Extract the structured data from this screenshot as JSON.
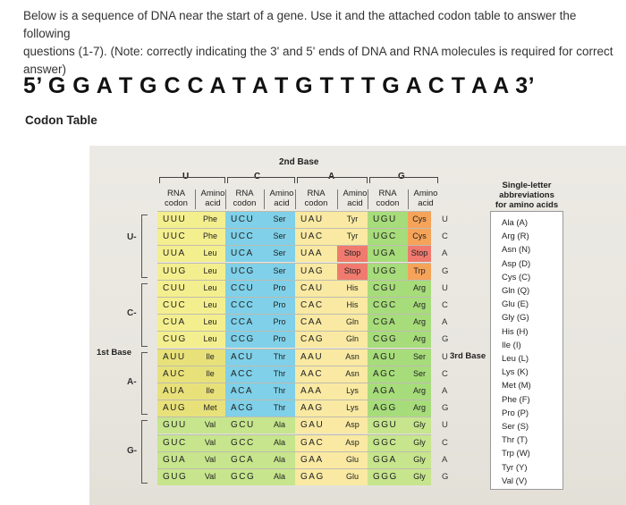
{
  "question": {
    "line1": "Below is a sequence of DNA near the start of a gene. Use it and the attached codon table to answer the following",
    "line2": "questions (1-7). (Note: correctly indicating the 3' and 5' ends of DNA and RNA molecules is required for correct answer)"
  },
  "sequence": "5’ G G A T G C C A T A T G T T T G A C T A A 3’",
  "codon_table_title": "Codon Table",
  "table": {
    "second_base_label": "2nd Base",
    "first_base_label": "1st Base",
    "third_base_label": "3rd Base",
    "bases": [
      "U",
      "C",
      "A",
      "G"
    ],
    "col_headers": [
      "RNA codon",
      "Amino acid",
      "RNA codon",
      "Amino acid",
      "RNA codon",
      "Amino acid",
      "RNA codon",
      "Amino acid"
    ],
    "third_bases": [
      "U",
      "C",
      "A",
      "G",
      "U",
      "C",
      "A",
      "G",
      "U",
      "C",
      "A",
      "G",
      "U",
      "C",
      "A",
      "G"
    ],
    "rows": [
      [
        "UUU",
        "Phe",
        "UCU",
        "Ser",
        "UAU",
        "Tyr",
        "UGU",
        "Cys"
      ],
      [
        "UUC",
        "Phe",
        "UCC",
        "Ser",
        "UAC",
        "Tyr",
        "UGC",
        "Cys"
      ],
      [
        "UUA",
        "Leu",
        "UCA",
        "Ser",
        "UAA",
        "Stop",
        "UGA",
        "Stop"
      ],
      [
        "UUG",
        "Leu",
        "UCG",
        "Ser",
        "UAG",
        "Stop",
        "UGG",
        "Trp"
      ],
      [
        "CUU",
        "Leu",
        "CCU",
        "Pro",
        "CAU",
        "His",
        "CGU",
        "Arg"
      ],
      [
        "CUC",
        "Leu",
        "CCC",
        "Pro",
        "CAC",
        "His",
        "CGC",
        "Arg"
      ],
      [
        "CUA",
        "Leu",
        "CCA",
        "Pro",
        "CAA",
        "Gln",
        "CGA",
        "Arg"
      ],
      [
        "CUG",
        "Leu",
        "CCG",
        "Pro",
        "CAG",
        "Gln",
        "CGG",
        "Arg"
      ],
      [
        "AUU",
        "Ile",
        "ACU",
        "Thr",
        "AAU",
        "Asn",
        "AGU",
        "Ser"
      ],
      [
        "AUC",
        "Ile",
        "ACC",
        "Thr",
        "AAC",
        "Asn",
        "AGC",
        "Ser"
      ],
      [
        "AUA",
        "Ile",
        "ACA",
        "Thr",
        "AAA",
        "Lys",
        "AGA",
        "Arg"
      ],
      [
        "AUG",
        "Met",
        "ACG",
        "Thr",
        "AAG",
        "Lys",
        "AGG",
        "Arg"
      ],
      [
        "GUU",
        "Val",
        "GCU",
        "Ala",
        "GAU",
        "Asp",
        "GGU",
        "Gly"
      ],
      [
        "GUC",
        "Val",
        "GCC",
        "Ala",
        "GAC",
        "Asp",
        "GGC",
        "Gly"
      ],
      [
        "GUA",
        "Val",
        "GCA",
        "Ala",
        "GAA",
        "Glu",
        "GGA",
        "Gly"
      ],
      [
        "GUG",
        "Val",
        "GCG",
        "Ala",
        "GAG",
        "Glu",
        "GGG",
        "Gly"
      ]
    ]
  },
  "abbreviations": {
    "title": "Single-letter abbreviations for amino acids",
    "items": [
      "Ala (A)",
      "Arg (R)",
      "Asn (N)",
      "Asp (D)",
      "Cys (C)",
      "Gln (Q)",
      "Glu (E)",
      "Gly (G)",
      "His (H)",
      "Ile (I)",
      "Leu (L)",
      "Lys (K)",
      "Met (M)",
      "Phe (F)",
      "Pro (P)",
      "Ser (S)",
      "Thr (T)",
      "Trp (W)",
      "Tyr (Y)",
      "Val (V)"
    ]
  },
  "colors": {
    "phe_leu": "#f4ef8e",
    "ser_pro_thr": "#7fd0e8",
    "stop": "#f07a6e",
    "cys_trp": "#f6a35a",
    "arg_ser_g": "#a7dc7a",
    "ile_met": "#e8e17a",
    "val_ala_gly": "#c6e58c",
    "polar_a": "#f9e9a2",
    "paper": "#eceae4"
  }
}
